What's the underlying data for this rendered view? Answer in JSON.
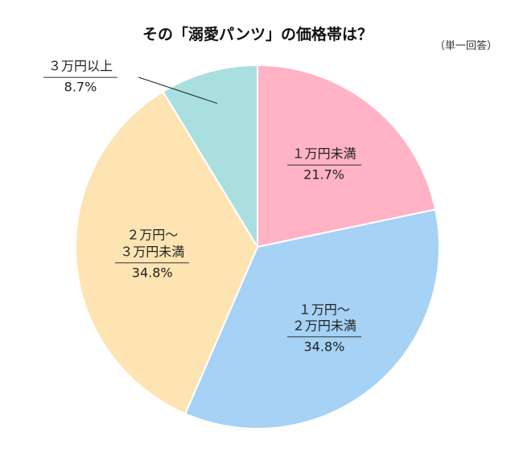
{
  "chart_data": {
    "type": "pie",
    "title": "その「溺愛パンツ」の価格帯は？",
    "subtitle": "（単一回答）",
    "categories": [
      "１万円未満",
      "１万円〜\n２万円未満",
      "２万円〜\n３万円未満",
      "３万円以上"
    ],
    "values": [
      21.7,
      34.8,
      34.8,
      8.7
    ],
    "value_labels": [
      "21.7%",
      "34.8%",
      "34.8%",
      "8.7%"
    ],
    "colors": [
      "#ffb3c4",
      "#a5d2f5",
      "#fde4b2",
      "#aadfe0"
    ]
  }
}
